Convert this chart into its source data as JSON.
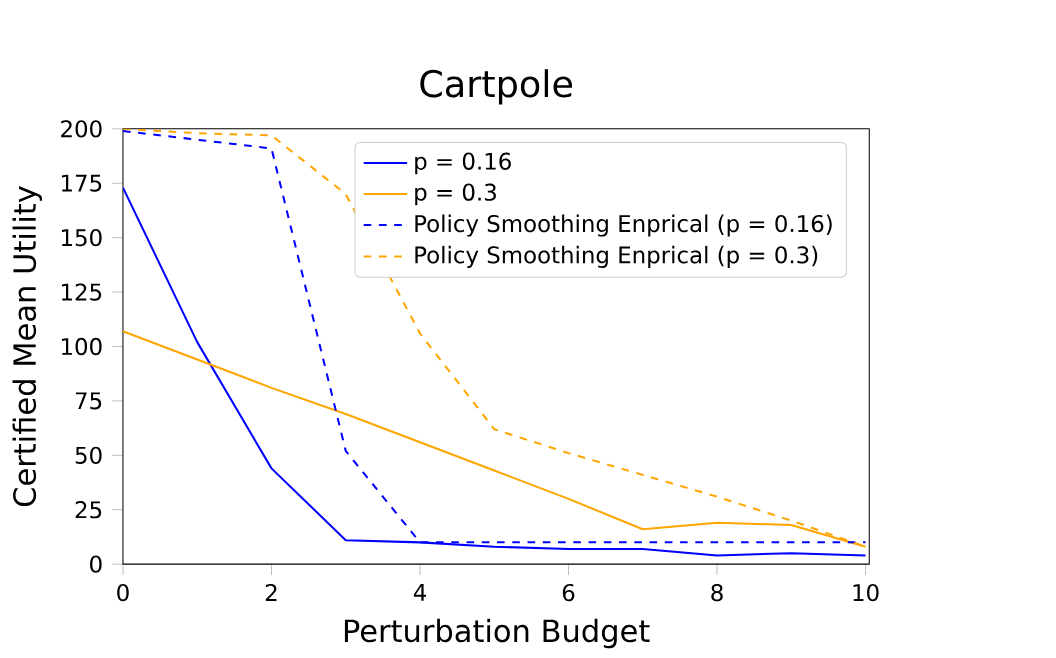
{
  "chart_data": {
    "type": "line",
    "title": "Cartpole",
    "xlabel": "Perturbation Budget",
    "ylabel": "Certified Mean Utility",
    "x": [
      0,
      1,
      2,
      3,
      4,
      5,
      6,
      7,
      8,
      9,
      10
    ],
    "series": [
      {
        "name": "p = 0.16",
        "color": "#0000ff",
        "line_style": "solid",
        "values": [
          173,
          102,
          44,
          11,
          10,
          8,
          7,
          7,
          4,
          5,
          4
        ]
      },
      {
        "name": "p = 0.3",
        "color": "#ffa500",
        "line_style": "solid",
        "values": [
          107,
          94,
          81,
          69,
          56,
          43,
          30,
          16,
          19,
          18,
          8
        ]
      },
      {
        "name": "Policy Smoothing Enprical (p = 0.16)",
        "color": "#0000ff",
        "line_style": "dashed",
        "values": [
          199,
          195,
          191,
          52,
          10,
          10,
          10,
          10,
          10,
          10,
          10
        ]
      },
      {
        "name": "Policy Smoothing Enprical (p = 0.3)",
        "color": "#ffa500",
        "line_style": "dashed",
        "values": [
          200,
          198,
          197,
          170,
          106,
          62,
          51,
          41,
          31,
          20,
          8
        ]
      }
    ],
    "xlim": [
      0,
      10.05
    ],
    "ylim": [
      0,
      200
    ],
    "xticks": [
      0,
      2,
      4,
      6,
      8,
      10
    ],
    "yticks": [
      0,
      25,
      50,
      75,
      100,
      125,
      150,
      175,
      200
    ],
    "grid": false,
    "legend": "top right",
    "marker": "none"
  }
}
